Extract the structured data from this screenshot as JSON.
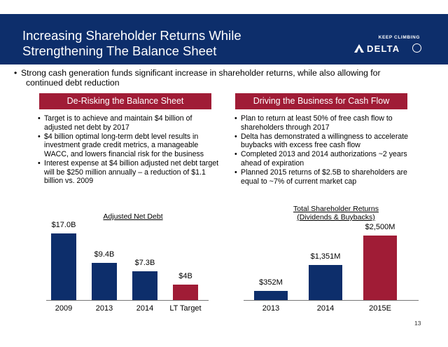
{
  "header": {
    "title_line1": "Increasing Shareholder Returns While",
    "title_line2": "Strengthening The Balance Sheet",
    "logo_tagline": "KEEP CLIMBING",
    "logo_wordmark": "DELTA"
  },
  "lead": {
    "bullet": "•",
    "line1": "Strong cash generation funds significant increase in shareholder returns, while also allowing for",
    "line2": "continued debt reduction"
  },
  "left_section": {
    "heading": "De-Risking the Balance Sheet",
    "bullets": [
      "Target is to achieve and maintain $4 billion of adjusted net debt by 2017",
      "$4 billion optimal long-term debt level results in investment grade credit metrics, a manageable WACC, and lowers financial risk for the business",
      "Interest expense at $4 billion adjusted net debt target will be $250 million annually – a reduction of $1.1 billion vs. 2009"
    ]
  },
  "right_section": {
    "heading": "Driving the Business for Cash Flow",
    "bullets": [
      "Plan to return at least 50% of free cash flow to shareholders through 2017",
      "Delta has demonstrated a willingness to accelerate buybacks with excess free cash flow",
      "Completed 2013 and 2014 authorizations ~2 years ahead of expiration",
      "Planned 2015 returns of $2.5B to shareholders are equal to ~7% of current market cap"
    ]
  },
  "colors": {
    "navy": "#0d2e6b",
    "accent_red": "#a01c36"
  },
  "page_number": "13",
  "chart_data": [
    {
      "type": "bar",
      "title": "Adjusted Net Debt",
      "categories": [
        "2009",
        "2013",
        "2014",
        "LT Target"
      ],
      "values": [
        17.0,
        9.4,
        7.3,
        4.0
      ],
      "value_labels": [
        "$17.0B",
        "$9.4B",
        "$7.3B",
        "$4B"
      ],
      "bar_colors": [
        "#0d2e6b",
        "#0d2e6b",
        "#0d2e6b",
        "#a01c36"
      ],
      "ylim": [
        0,
        17.0
      ],
      "grid": false
    },
    {
      "type": "bar",
      "title_line1": "Total Shareholder Returns",
      "title_line2": "(Dividends & Buybacks)",
      "categories": [
        "2013",
        "2014",
        "2015E"
      ],
      "values": [
        352,
        1351,
        2500
      ],
      "value_labels": [
        "$352M",
        "$1,351M",
        "$2,500M"
      ],
      "bar_colors": [
        "#0d2e6b",
        "#0d2e6b",
        "#a01c36"
      ],
      "ylim": [
        0,
        2500
      ],
      "grid": false
    }
  ]
}
